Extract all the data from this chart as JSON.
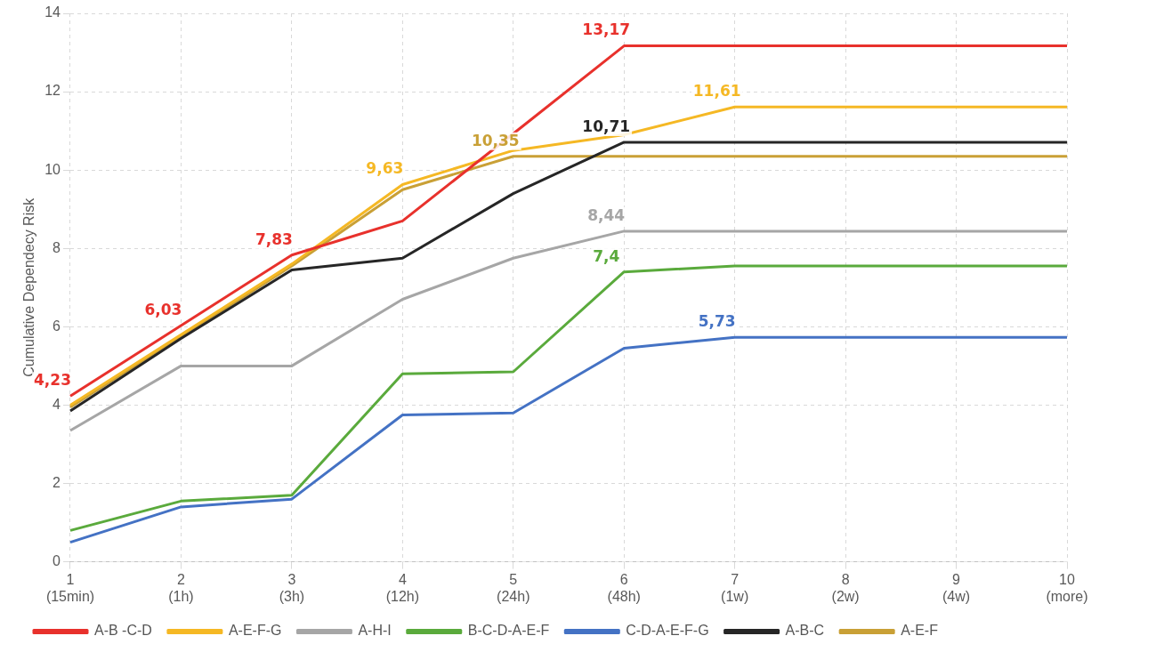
{
  "chart_data": {
    "type": "line",
    "ylabel": "Cumulative Dependecy Risk",
    "categories": [
      "1\n(15min)",
      "2\n(1h)",
      "3\n(3h)",
      "4\n(12h)",
      "5\n(24h)",
      "6\n(48h)",
      "7\n(1w)",
      "8\n(2w)",
      "9\n(4w)",
      "10\n(more)"
    ],
    "series": [
      {
        "name": "A-B -C-D",
        "color": "#e8312c",
        "values": [
          4.23,
          6.03,
          7.83,
          8.7,
          10.93,
          13.17,
          13.17,
          13.17,
          13.17,
          13.17
        ],
        "value_labels": [
          "4,23",
          "6,03",
          "7,83",
          null,
          null,
          "13,17",
          null,
          null,
          null,
          null
        ]
      },
      {
        "name": "A-E-F-G",
        "color": "#f5b824",
        "values": [
          4.0,
          5.8,
          7.6,
          9.63,
          10.5,
          10.9,
          11.61,
          11.61,
          11.61,
          11.61
        ],
        "value_labels": [
          null,
          null,
          null,
          "9,63",
          null,
          null,
          "11,61",
          null,
          null,
          null
        ]
      },
      {
        "name": "A-H-I",
        "color": "#a6a6a6",
        "values": [
          3.35,
          5.0,
          5.0,
          6.7,
          7.75,
          8.44,
          8.44,
          8.44,
          8.44,
          8.44
        ],
        "value_labels": [
          null,
          null,
          null,
          null,
          null,
          "8,44",
          null,
          null,
          null,
          null
        ]
      },
      {
        "name": "B-C-D-A-E-F",
        "color": "#5aaa3c",
        "values": [
          0.8,
          1.55,
          1.7,
          4.8,
          4.85,
          7.4,
          7.55,
          7.55,
          7.55,
          7.55
        ],
        "value_labels": [
          null,
          null,
          null,
          null,
          null,
          "7,4",
          null,
          null,
          null,
          null
        ]
      },
      {
        "name": "C-D-A-E-F-G",
        "color": "#4472c4",
        "values": [
          0.5,
          1.4,
          1.6,
          3.75,
          3.8,
          5.45,
          5.73,
          5.73,
          5.73,
          5.73
        ],
        "value_labels": [
          null,
          null,
          null,
          null,
          null,
          null,
          "5,73",
          null,
          null,
          null
        ]
      },
      {
        "name": "A-B-C",
        "color": "#262626",
        "values": [
          3.85,
          5.7,
          7.45,
          7.75,
          9.4,
          10.71,
          10.71,
          10.71,
          10.71,
          10.71
        ],
        "value_labels": [
          null,
          null,
          null,
          null,
          null,
          "10,71",
          null,
          null,
          null,
          null
        ]
      },
      {
        "name": "A-E-F",
        "color": "#c9a036",
        "values": [
          3.95,
          5.75,
          7.55,
          9.5,
          10.35,
          10.35,
          10.35,
          10.35,
          10.35,
          10.35
        ],
        "value_labels": [
          null,
          null,
          null,
          null,
          "10,35",
          null,
          null,
          null,
          null,
          null
        ]
      }
    ],
    "ylim": [
      0,
      14
    ],
    "yticks": [
      0,
      2,
      4,
      6,
      8,
      10,
      12,
      14
    ],
    "grid": true,
    "legend": "bottom",
    "marker": "none",
    "line_style": "solid"
  }
}
